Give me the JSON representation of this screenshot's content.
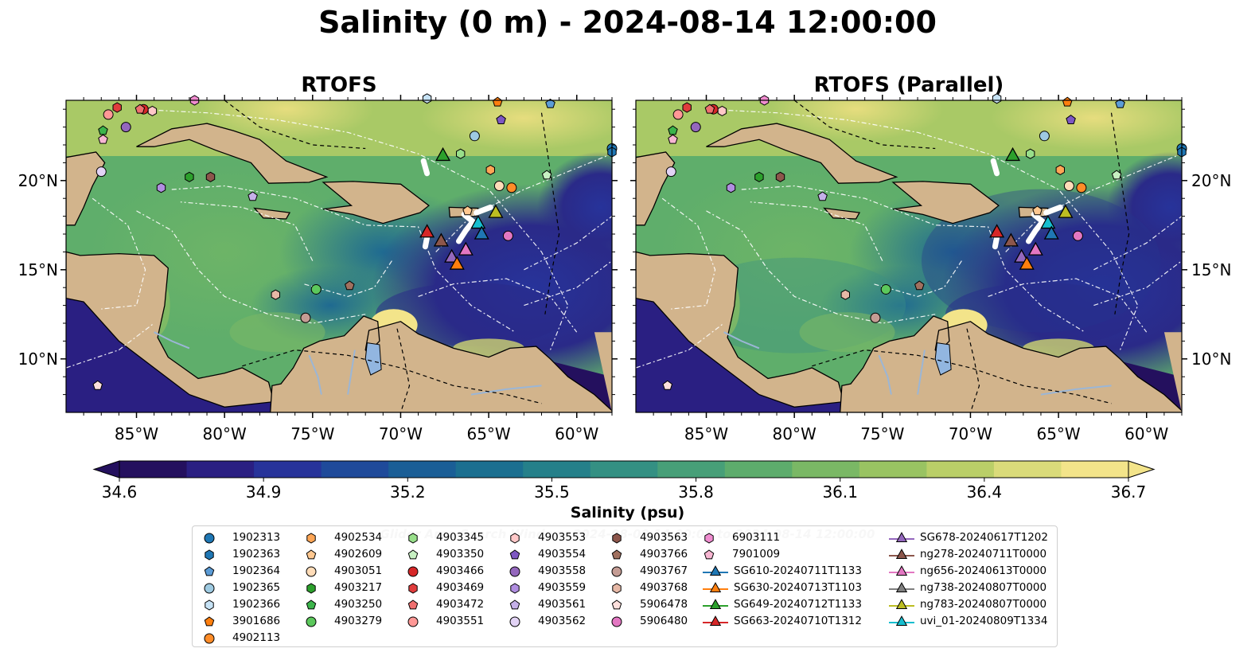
{
  "title": "Salinity (0 m) - 2024-08-14 12:00:00",
  "panels": [
    {
      "title": "RTOFS"
    },
    {
      "title": "RTOFS (Parallel)"
    }
  ],
  "colors": {
    "land": "#d2b48c",
    "colormap": [
      "#24105e",
      "#2a1f82",
      "#27339a",
      "#1f4a9a",
      "#1a5e96",
      "#1b6f90",
      "#25808a",
      "#349083",
      "#479f78",
      "#5dac6c",
      "#7ab865",
      "#99c362",
      "#bacf68",
      "#dadb7a",
      "#f3e48a"
    ],
    "trajectory": "#ffffff"
  },
  "chart_data": {
    "type": "heatmap",
    "variable": "Salinity",
    "depth": "0 m",
    "time": "2024-08-14 12:00:00",
    "x_ticks": [
      "85°W",
      "80°W",
      "75°W",
      "70°W",
      "65°W",
      "60°W"
    ],
    "y_ticks": [
      "20°N",
      "15°N",
      "10°N"
    ],
    "xlim": [
      -89,
      -58
    ],
    "ylim": [
      7,
      24.5
    ],
    "colorbar": {
      "label": "Salinity (psu)",
      "range": [
        34.6,
        36.7
      ],
      "ticks": [
        "34.6",
        "34.9",
        "35.2",
        "35.5",
        "35.8",
        "36.1",
        "36.4",
        "36.7"
      ],
      "extend": "both"
    },
    "watermark": "Glider Area Search Window: 2024-08-09 14:00:00 to 2024-08-14 12:00:00",
    "legend": [
      {
        "label": "1902313",
        "marker": "circle",
        "color": "#1f77b4"
      },
      {
        "label": "1902363",
        "marker": "hexagon",
        "color": "#1f77b4"
      },
      {
        "label": "1902364",
        "marker": "pentagon",
        "color": "#5b9bd5"
      },
      {
        "label": "1902365",
        "marker": "circle",
        "color": "#9ecae1"
      },
      {
        "label": "1902366",
        "marker": "hexagon",
        "color": "#c6e2f5"
      },
      {
        "label": "3901686",
        "marker": "pentagon",
        "color": "#ff7f0e"
      },
      {
        "label": "4902113",
        "marker": "circle",
        "color": "#ff8c28"
      },
      {
        "label": "4902534",
        "marker": "hexagon",
        "color": "#ffa656"
      },
      {
        "label": "4902609",
        "marker": "pentagon",
        "color": "#ffc890"
      },
      {
        "label": "4903051",
        "marker": "circle",
        "color": "#ffdcb8"
      },
      {
        "label": "4903217",
        "marker": "hexagon",
        "color": "#2ca02c"
      },
      {
        "label": "4903250",
        "marker": "pentagon",
        "color": "#3cb44b"
      },
      {
        "label": "4903279",
        "marker": "circle",
        "color": "#5cc85c"
      },
      {
        "label": "4903345",
        "marker": "hexagon",
        "color": "#98df8a"
      },
      {
        "label": "4903350",
        "marker": "pentagon",
        "color": "#c7f0c2"
      },
      {
        "label": "4903466",
        "marker": "circle",
        "color": "#d62728"
      },
      {
        "label": "4903469",
        "marker": "hexagon",
        "color": "#e03c3c"
      },
      {
        "label": "4903472",
        "marker": "pentagon",
        "color": "#ef6f6f"
      },
      {
        "label": "4903551",
        "marker": "circle",
        "color": "#ff9896"
      },
      {
        "label": "4903553",
        "marker": "hexagon",
        "color": "#ffc8c8"
      },
      {
        "label": "4903554",
        "marker": "pentagon",
        "color": "#7e57c2"
      },
      {
        "label": "4903558",
        "marker": "circle",
        "color": "#9467bd"
      },
      {
        "label": "4903559",
        "marker": "hexagon",
        "color": "#b08ee0"
      },
      {
        "label": "4903561",
        "marker": "pentagon",
        "color": "#c5b0e8"
      },
      {
        "label": "4903562",
        "marker": "circle",
        "color": "#e2d3f5"
      },
      {
        "label": "4903563",
        "marker": "hexagon",
        "color": "#8c564b"
      },
      {
        "label": "4903766",
        "marker": "pentagon",
        "color": "#a0705f"
      },
      {
        "label": "4903767",
        "marker": "circle",
        "color": "#c49c94"
      },
      {
        "label": "4903768",
        "marker": "hexagon",
        "color": "#e6b8a6"
      },
      {
        "label": "5906478",
        "marker": "pentagon",
        "color": "#fde0dd"
      },
      {
        "label": "5906480",
        "marker": "circle",
        "color": "#e377c2"
      },
      {
        "label": "6903111",
        "marker": "hexagon",
        "color": "#f08cd0"
      },
      {
        "label": "7901009",
        "marker": "pentagon",
        "color": "#f7b6d2"
      },
      {
        "label": "SG610-20240711T1133",
        "marker": "triangle-line",
        "color": "#1f77b4"
      },
      {
        "label": "SG630-20240713T1103",
        "marker": "triangle-line",
        "color": "#ff7f0e"
      },
      {
        "label": "SG649-20240712T1133",
        "marker": "triangle-line",
        "color": "#2ca02c"
      },
      {
        "label": "SG663-20240710T1312",
        "marker": "triangle-line",
        "color": "#d62728"
      },
      {
        "label": "SG678-20240617T1202",
        "marker": "triangle-line",
        "color": "#9467bd"
      },
      {
        "label": "ng278-20240711T0000",
        "marker": "triangle-line",
        "color": "#8c564b"
      },
      {
        "label": "ng656-20240613T0000",
        "marker": "triangle-line",
        "color": "#e377c2"
      },
      {
        "label": "ng738-20240807T0000",
        "marker": "triangle-line",
        "color": "#7f7f7f"
      },
      {
        "label": "ng783-20240807T0000",
        "marker": "triangle-line",
        "color": "#bcbd22"
      },
      {
        "label": "uvi_01-20240809T1334",
        "marker": "triangle-line",
        "color": "#17becf"
      }
    ],
    "floats": [
      {
        "id": "1902313",
        "lon": -58.0,
        "lat": 21.8
      },
      {
        "id": "1902363",
        "lon": -58.0,
        "lat": 21.6
      },
      {
        "id": "1902364",
        "lon": -61.5,
        "lat": 24.3
      },
      {
        "id": "1902365",
        "lon": -65.8,
        "lat": 22.5
      },
      {
        "id": "1902366",
        "lon": -68.5,
        "lat": 24.6
      },
      {
        "id": "3901686",
        "lon": -64.5,
        "lat": 24.4
      },
      {
        "id": "4902113",
        "lon": -63.7,
        "lat": 19.6
      },
      {
        "id": "4902534",
        "lon": -64.9,
        "lat": 20.6
      },
      {
        "id": "4902609",
        "lon": -66.2,
        "lat": 18.3
      },
      {
        "id": "4903051",
        "lon": -64.4,
        "lat": 19.7
      },
      {
        "id": "4903217",
        "lon": -82.0,
        "lat": 20.2
      },
      {
        "id": "4903250",
        "lon": -86.9,
        "lat": 22.8
      },
      {
        "id": "4903279",
        "lon": -74.8,
        "lat": 13.9
      },
      {
        "id": "4903345",
        "lon": -66.6,
        "lat": 21.5
      },
      {
        "id": "4903350",
        "lon": -61.7,
        "lat": 20.3
      },
      {
        "id": "4903466",
        "lon": -84.6,
        "lat": 24.0
      },
      {
        "id": "4903469",
        "lon": -86.1,
        "lat": 24.1
      },
      {
        "id": "4903472",
        "lon": -84.8,
        "lat": 24.0
      },
      {
        "id": "4903551",
        "lon": -86.6,
        "lat": 23.7
      },
      {
        "id": "4903553",
        "lon": -84.1,
        "lat": 23.9
      },
      {
        "id": "4903554",
        "lon": -64.3,
        "lat": 23.4
      },
      {
        "id": "4903558",
        "lon": -85.6,
        "lat": 23.0
      },
      {
        "id": "4903559",
        "lon": -83.6,
        "lat": 19.6
      },
      {
        "id": "4903561",
        "lon": -78.4,
        "lat": 19.1
      },
      {
        "id": "4903562",
        "lon": -87.0,
        "lat": 20.5
      },
      {
        "id": "4903563",
        "lon": -80.8,
        "lat": 20.2
      },
      {
        "id": "4903766",
        "lon": -72.9,
        "lat": 14.1
      },
      {
        "id": "4903767",
        "lon": -75.4,
        "lat": 12.3
      },
      {
        "id": "4903768",
        "lon": -77.1,
        "lat": 13.6
      },
      {
        "id": "5906478",
        "lon": -87.2,
        "lat": 8.5
      },
      {
        "id": "5906480",
        "lon": -63.9,
        "lat": 16.9
      },
      {
        "id": "6903111",
        "lon": -81.7,
        "lat": 24.5
      },
      {
        "id": "7901009",
        "lon": -86.9,
        "lat": 22.3
      }
    ],
    "gliders": [
      {
        "id": "SG649-20240712T1133",
        "lon": -67.6,
        "lat": 21.4
      },
      {
        "id": "uvi_01-20240809T1334",
        "lon": -65.6,
        "lat": 17.6
      },
      {
        "id": "ng783-20240807T0000",
        "lon": -64.6,
        "lat": 18.2
      },
      {
        "id": "SG610-20240711T1133",
        "lon": -65.4,
        "lat": 17.0
      },
      {
        "id": "SG663-20240710T1312",
        "lon": -68.5,
        "lat": 17.1
      },
      {
        "id": "ng278-20240711T0000",
        "lon": -67.7,
        "lat": 16.6
      },
      {
        "id": "SG678-20240617T1202",
        "lon": -67.1,
        "lat": 15.7
      },
      {
        "id": "ng656-20240613T0000",
        "lon": -66.3,
        "lat": 16.1
      },
      {
        "id": "SG630-20240713T1103",
        "lon": -66.8,
        "lat": 15.3
      }
    ]
  }
}
